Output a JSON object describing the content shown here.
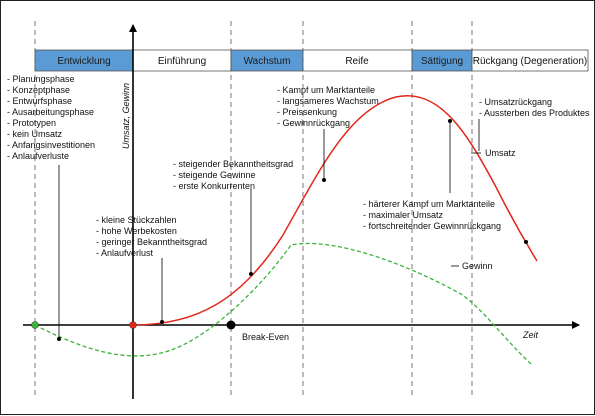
{
  "phases": [
    {
      "label": "Entwicklung",
      "color": "#5b9bd5"
    },
    {
      "label": "Einführung",
      "color": "#ffffff"
    },
    {
      "label": "Wachstum",
      "color": "#5b9bd5"
    },
    {
      "label": "Reife",
      "color": "#ffffff"
    },
    {
      "label": "Sättigung",
      "color": "#5b9bd5"
    },
    {
      "label": "Rückgang (Degeneration)",
      "color": "#ffffff"
    }
  ],
  "axes": {
    "y_label": "Umsatz, Gewinn",
    "x_label": "Zeit"
  },
  "series": {
    "umsatz": {
      "label": "Umsatz",
      "color": "#e3261b"
    },
    "gewinn": {
      "label": "Gewinn",
      "color": "#3bb33b"
    }
  },
  "break_even": {
    "label": "Break-Even"
  },
  "notes": {
    "entwicklung": [
      "- Planungsphase",
      "- Konzeptphase",
      "- Entwurfsphase",
      "- Ausarbeitungsphase",
      "- Prototypen",
      "- kein Umsatz",
      "- Anfangsinvestitionen",
      "- Anlaufverluste"
    ],
    "einfuehrung": [
      "- kleine Stückzahlen",
      "- hohe Werbekosten",
      "- geringer Bekanntheitsgrad",
      "- Anlaufverlust"
    ],
    "wachstum": [
      "- steigender Bekanntheitsgrad",
      "- steigende Gewinne",
      "- erste Konkurrenten"
    ],
    "reife": [
      "- Kampf um Marktanteile",
      "- langsameres Wachstum",
      "- Preissenkung",
      "- Gewinnrückgang"
    ],
    "saettigung": [
      "- härterer Kampf um Marktanteile",
      "- maximaler Umsatz",
      "- fortschreitender Gewinnrückgang"
    ],
    "rueckgang": [
      "- Umsatzrückgang",
      "- Aussterben des Produktes"
    ]
  }
}
